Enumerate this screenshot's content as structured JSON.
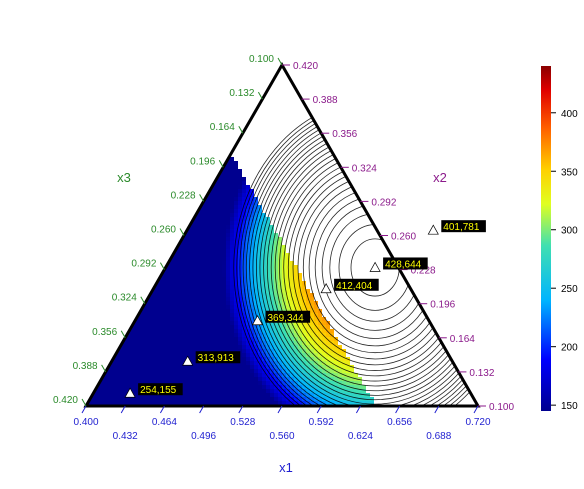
{
  "chart_data": {
    "type": "ternary-contour",
    "axes": {
      "x1": {
        "title": "x1",
        "min": 0.4,
        "max": 0.72,
        "ticks": [
          "0.400",
          "0.432",
          "0.464",
          "0.496",
          "0.528",
          "0.560",
          "0.592",
          "0.624",
          "0.656",
          "0.688",
          "0.720"
        ],
        "color": "#1f1fd0"
      },
      "x2": {
        "title": "x2",
        "min": 0.1,
        "max": 0.42,
        "ticks": [
          "0.100",
          "0.132",
          "0.164",
          "0.196",
          "0.228",
          "0.260",
          "0.292",
          "0.324",
          "0.356",
          "0.388",
          "0.420"
        ],
        "color": "#8b1a8b"
      },
      "x3": {
        "title": "x3",
        "min": 0.1,
        "max": 0.42,
        "ticks": [
          "0.100",
          "0.132",
          "0.164",
          "0.196",
          "0.228",
          "0.260",
          "0.292",
          "0.324",
          "0.356",
          "0.388",
          "0.420"
        ],
        "color": "#2a8a2a"
      }
    },
    "points": [
      {
        "label": "428,644",
        "x1": 0.571,
        "x2": 0.23
      },
      {
        "label": "401,781",
        "x1": 0.601,
        "x2": 0.265
      },
      {
        "label": "412,404",
        "x1": 0.541,
        "x2": 0.21
      },
      {
        "label": "369,344",
        "x1": 0.5,
        "x2": 0.18
      },
      {
        "label": "313,913",
        "x1": 0.462,
        "x2": 0.142
      },
      {
        "label": "254,155",
        "x1": 0.43,
        "x2": 0.112
      }
    ],
    "contour_field": {
      "peak": 428.644,
      "center_x1": 0.571,
      "center_x2": 0.23,
      "min": 150
    },
    "colorbar": {
      "min": 145,
      "max": 440,
      "ticks": [
        "150",
        "200",
        "250",
        "300",
        "350",
        "400"
      ]
    }
  }
}
